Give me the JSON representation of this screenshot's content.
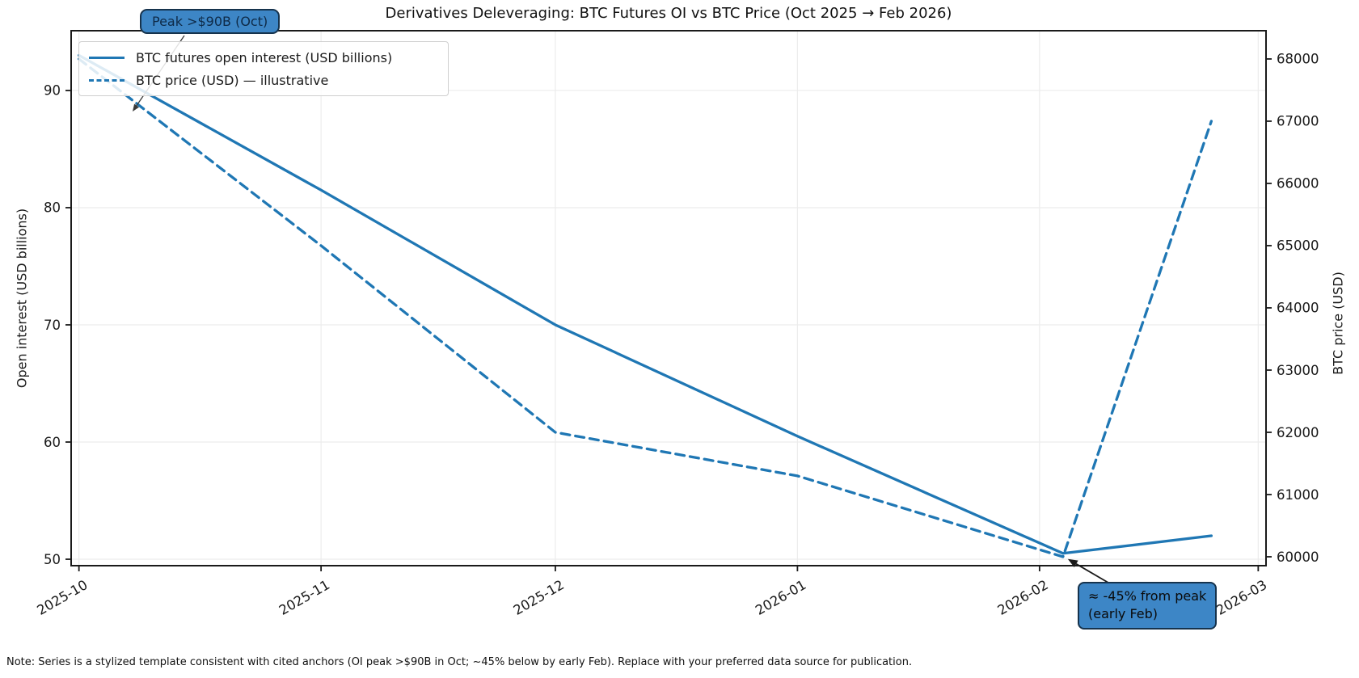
{
  "title": "Derivatives Deleveraging: BTC Futures OI vs BTC Price (Oct 2025 → Feb 2026)",
  "note": "Note: Series is a stylized template consistent with cited anchors (OI peak >$90B in Oct; ~45% below by early Feb). Replace with your preferred data source for publication.",
  "legend": {
    "position": "upper left",
    "items": [
      {
        "label": "BTC futures open interest (USD billions)",
        "style": "solid"
      },
      {
        "label": "BTC price (USD) — illustrative",
        "style": "dashed"
      }
    ]
  },
  "annotations": {
    "peak": {
      "text": "Peak >$90B (Oct)"
    },
    "trough": {
      "line1": "≈ -45% from peak",
      "line2": "(early Feb)"
    }
  },
  "colors": {
    "line_blue": "#1f77b4",
    "annotation_fill": "#3d86c6",
    "annotation_border": "#16334d",
    "grid": "#ececec",
    "spine": "#1a1a1a",
    "arrow_black": "#1a1a1a",
    "legend_border": "#cfcfcf",
    "text": "#111111"
  },
  "chart_data": {
    "type": "line",
    "title": "Derivatives Deleveraging: BTC Futures OI vs BTC Price (Oct 2025 → Feb 2026)",
    "x": [
      "2025-10-01",
      "2025-11-01",
      "2025-12-01",
      "2026-01-01",
      "2026-02-04",
      "2026-02-23"
    ],
    "series": [
      {
        "name": "BTC futures open interest (USD billions)",
        "axis": "left",
        "style": "solid",
        "values": [
          93,
          81.5,
          70,
          60.5,
          50.5,
          52
        ]
      },
      {
        "name": "BTC price (USD) — illustrative",
        "axis": "right",
        "style": "dashed",
        "values": [
          68000,
          65000,
          62000,
          61300,
          60000,
          67000
        ]
      }
    ],
    "left_axis": {
      "label": "Open interest (USD billions)",
      "ticks": [
        50,
        60,
        70,
        80,
        90
      ],
      "range": [
        49.45,
        95.1
      ]
    },
    "right_axis": {
      "label": "BTC price (USD)",
      "ticks": [
        60000,
        61000,
        62000,
        63000,
        64000,
        65000,
        66000,
        67000,
        68000
      ],
      "range": [
        59857,
        68454
      ]
    },
    "x_axis": {
      "tick_labels": [
        "2025-10",
        "2025-11",
        "2025-12",
        "2026-01",
        "2026-02",
        "2026-03"
      ],
      "start": "2025-09-30",
      "end": "2026-03-02",
      "tick_rotation_deg": 30
    },
    "grid": true,
    "legend_position": "upper left"
  }
}
